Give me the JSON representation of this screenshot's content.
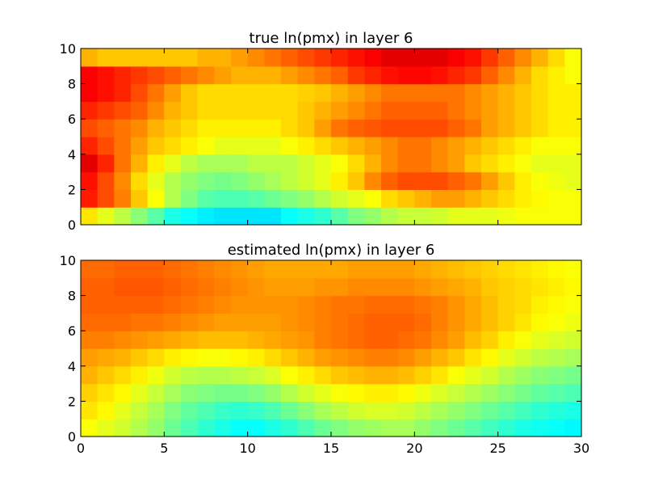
{
  "chart_data": [
    {
      "type": "heatmap",
      "title": "true ln(pmx) in layer 6",
      "x_range": [
        0,
        30
      ],
      "y_range": [
        0,
        10
      ],
      "x_ticks": [
        0,
        5,
        10,
        15,
        20,
        25,
        30
      ],
      "y_ticks": [
        0,
        2,
        4,
        6,
        8,
        10
      ],
      "show_x_tick_labels": false,
      "colormap": "jet",
      "grid_shape": [
        10,
        30
      ],
      "rows_bottom_to_top": [
        [
          0.65,
          0.6,
          0.56,
          0.51,
          0.46,
          0.4,
          0.38,
          0.36,
          0.35,
          0.35,
          0.35,
          0.35,
          0.38,
          0.4,
          0.42,
          0.46,
          0.5,
          0.52,
          0.55,
          0.57,
          0.57,
          0.58,
          0.6,
          0.6,
          0.6,
          0.61,
          0.62,
          0.62,
          0.62,
          0.62
        ],
        [
          0.85,
          0.8,
          0.75,
          0.68,
          0.62,
          0.55,
          0.5,
          0.46,
          0.45,
          0.45,
          0.46,
          0.48,
          0.5,
          0.52,
          0.55,
          0.58,
          0.6,
          0.62,
          0.66,
          0.68,
          0.7,
          0.72,
          0.72,
          0.7,
          0.68,
          0.66,
          0.64,
          0.63,
          0.62,
          0.62
        ],
        [
          0.86,
          0.8,
          0.74,
          0.66,
          0.6,
          0.55,
          0.52,
          0.5,
          0.49,
          0.5,
          0.52,
          0.54,
          0.56,
          0.58,
          0.6,
          0.64,
          0.68,
          0.74,
          0.78,
          0.8,
          0.8,
          0.8,
          0.78,
          0.76,
          0.72,
          0.68,
          0.64,
          0.62,
          0.61,
          0.6
        ],
        [
          0.9,
          0.84,
          0.76,
          0.7,
          0.64,
          0.6,
          0.56,
          0.54,
          0.54,
          0.54,
          0.56,
          0.56,
          0.56,
          0.58,
          0.6,
          0.62,
          0.66,
          0.7,
          0.74,
          0.76,
          0.76,
          0.74,
          0.72,
          0.68,
          0.66,
          0.64,
          0.62,
          0.6,
          0.6,
          0.6
        ],
        [
          0.84,
          0.8,
          0.76,
          0.72,
          0.68,
          0.66,
          0.64,
          0.62,
          0.6,
          0.6,
          0.6,
          0.6,
          0.62,
          0.64,
          0.66,
          0.68,
          0.7,
          0.72,
          0.74,
          0.76,
          0.76,
          0.74,
          0.72,
          0.7,
          0.68,
          0.66,
          0.64,
          0.62,
          0.62,
          0.62
        ],
        [
          0.8,
          0.78,
          0.76,
          0.74,
          0.7,
          0.68,
          0.66,
          0.64,
          0.64,
          0.64,
          0.64,
          0.64,
          0.66,
          0.68,
          0.72,
          0.76,
          0.78,
          0.79,
          0.8,
          0.8,
          0.8,
          0.8,
          0.78,
          0.76,
          0.72,
          0.7,
          0.68,
          0.66,
          0.64,
          0.64
        ],
        [
          0.84,
          0.82,
          0.8,
          0.78,
          0.74,
          0.7,
          0.68,
          0.66,
          0.66,
          0.66,
          0.66,
          0.66,
          0.66,
          0.68,
          0.7,
          0.72,
          0.74,
          0.76,
          0.78,
          0.78,
          0.78,
          0.78,
          0.76,
          0.74,
          0.72,
          0.7,
          0.68,
          0.66,
          0.64,
          0.64
        ],
        [
          0.88,
          0.86,
          0.84,
          0.8,
          0.76,
          0.72,
          0.68,
          0.66,
          0.66,
          0.66,
          0.66,
          0.66,
          0.66,
          0.67,
          0.68,
          0.7,
          0.72,
          0.74,
          0.76,
          0.76,
          0.76,
          0.76,
          0.76,
          0.74,
          0.72,
          0.7,
          0.68,
          0.66,
          0.64,
          0.64
        ],
        [
          0.88,
          0.86,
          0.84,
          0.82,
          0.8,
          0.78,
          0.76,
          0.74,
          0.72,
          0.7,
          0.7,
          0.7,
          0.72,
          0.74,
          0.76,
          0.78,
          0.82,
          0.84,
          0.86,
          0.87,
          0.87,
          0.86,
          0.84,
          0.82,
          0.78,
          0.74,
          0.7,
          0.66,
          0.64,
          0.62
        ],
        [
          0.7,
          0.68,
          0.68,
          0.68,
          0.68,
          0.68,
          0.68,
          0.7,
          0.7,
          0.72,
          0.74,
          0.76,
          0.78,
          0.8,
          0.82,
          0.84,
          0.86,
          0.88,
          0.9,
          0.9,
          0.9,
          0.9,
          0.88,
          0.86,
          0.82,
          0.78,
          0.74,
          0.7,
          0.66,
          0.62
        ]
      ]
    },
    {
      "type": "heatmap",
      "title": "estimated ln(pmx) in layer 6",
      "x_range": [
        0,
        30
      ],
      "y_range": [
        0,
        10
      ],
      "x_ticks": [
        0,
        5,
        10,
        15,
        20,
        25,
        30
      ],
      "y_ticks": [
        0,
        2,
        4,
        6,
        8,
        10
      ],
      "show_x_tick_labels": true,
      "colormap": "jet",
      "grid_shape": [
        10,
        30
      ],
      "rows_bottom_to_top": [
        [
          0.62,
          0.6,
          0.58,
          0.55,
          0.52,
          0.48,
          0.45,
          0.42,
          0.4,
          0.38,
          0.38,
          0.4,
          0.42,
          0.45,
          0.48,
          0.5,
          0.52,
          0.53,
          0.54,
          0.54,
          0.52,
          0.5,
          0.48,
          0.46,
          0.44,
          0.42,
          0.4,
          0.39,
          0.38,
          0.37
        ],
        [
          0.65,
          0.63,
          0.6,
          0.57,
          0.54,
          0.5,
          0.47,
          0.45,
          0.43,
          0.42,
          0.43,
          0.45,
          0.48,
          0.51,
          0.54,
          0.56,
          0.58,
          0.59,
          0.59,
          0.58,
          0.56,
          0.54,
          0.52,
          0.5,
          0.48,
          0.46,
          0.44,
          0.42,
          0.41,
          0.4
        ],
        [
          0.67,
          0.65,
          0.63,
          0.6,
          0.57,
          0.54,
          0.51,
          0.5,
          0.49,
          0.49,
          0.5,
          0.52,
          0.55,
          0.58,
          0.6,
          0.62,
          0.63,
          0.64,
          0.64,
          0.63,
          0.61,
          0.59,
          0.57,
          0.55,
          0.53,
          0.51,
          0.49,
          0.47,
          0.46,
          0.45
        ],
        [
          0.7,
          0.68,
          0.66,
          0.64,
          0.61,
          0.58,
          0.56,
          0.55,
          0.55,
          0.56,
          0.57,
          0.59,
          0.62,
          0.64,
          0.66,
          0.68,
          0.69,
          0.7,
          0.7,
          0.69,
          0.67,
          0.65,
          0.62,
          0.6,
          0.58,
          0.55,
          0.53,
          0.51,
          0.5,
          0.49
        ],
        [
          0.72,
          0.71,
          0.7,
          0.68,
          0.66,
          0.64,
          0.63,
          0.62,
          0.62,
          0.63,
          0.64,
          0.66,
          0.68,
          0.7,
          0.72,
          0.73,
          0.74,
          0.75,
          0.75,
          0.74,
          0.72,
          0.7,
          0.68,
          0.65,
          0.63,
          0.6,
          0.58,
          0.56,
          0.55,
          0.54
        ],
        [
          0.75,
          0.75,
          0.74,
          0.73,
          0.72,
          0.71,
          0.7,
          0.69,
          0.69,
          0.69,
          0.7,
          0.71,
          0.72,
          0.73,
          0.75,
          0.76,
          0.77,
          0.78,
          0.78,
          0.77,
          0.76,
          0.74,
          0.72,
          0.69,
          0.67,
          0.64,
          0.62,
          0.6,
          0.59,
          0.58
        ],
        [
          0.77,
          0.77,
          0.77,
          0.76,
          0.76,
          0.75,
          0.74,
          0.73,
          0.72,
          0.72,
          0.72,
          0.72,
          0.73,
          0.74,
          0.75,
          0.76,
          0.77,
          0.78,
          0.78,
          0.78,
          0.77,
          0.75,
          0.73,
          0.71,
          0.69,
          0.67,
          0.65,
          0.63,
          0.62,
          0.61
        ],
        [
          0.78,
          0.78,
          0.78,
          0.78,
          0.78,
          0.77,
          0.76,
          0.75,
          0.74,
          0.73,
          0.73,
          0.73,
          0.73,
          0.74,
          0.75,
          0.76,
          0.76,
          0.77,
          0.77,
          0.77,
          0.76,
          0.75,
          0.73,
          0.71,
          0.69,
          0.67,
          0.66,
          0.64,
          0.63,
          0.62
        ],
        [
          0.78,
          0.78,
          0.79,
          0.79,
          0.79,
          0.78,
          0.77,
          0.76,
          0.75,
          0.74,
          0.73,
          0.72,
          0.72,
          0.72,
          0.73,
          0.73,
          0.74,
          0.74,
          0.74,
          0.74,
          0.73,
          0.72,
          0.71,
          0.7,
          0.68,
          0.67,
          0.66,
          0.65,
          0.64,
          0.63
        ],
        [
          0.77,
          0.77,
          0.78,
          0.78,
          0.78,
          0.77,
          0.76,
          0.75,
          0.74,
          0.73,
          0.72,
          0.71,
          0.71,
          0.71,
          0.71,
          0.71,
          0.72,
          0.72,
          0.72,
          0.72,
          0.71,
          0.7,
          0.69,
          0.68,
          0.67,
          0.66,
          0.65,
          0.64,
          0.63,
          0.62
        ]
      ]
    }
  ]
}
